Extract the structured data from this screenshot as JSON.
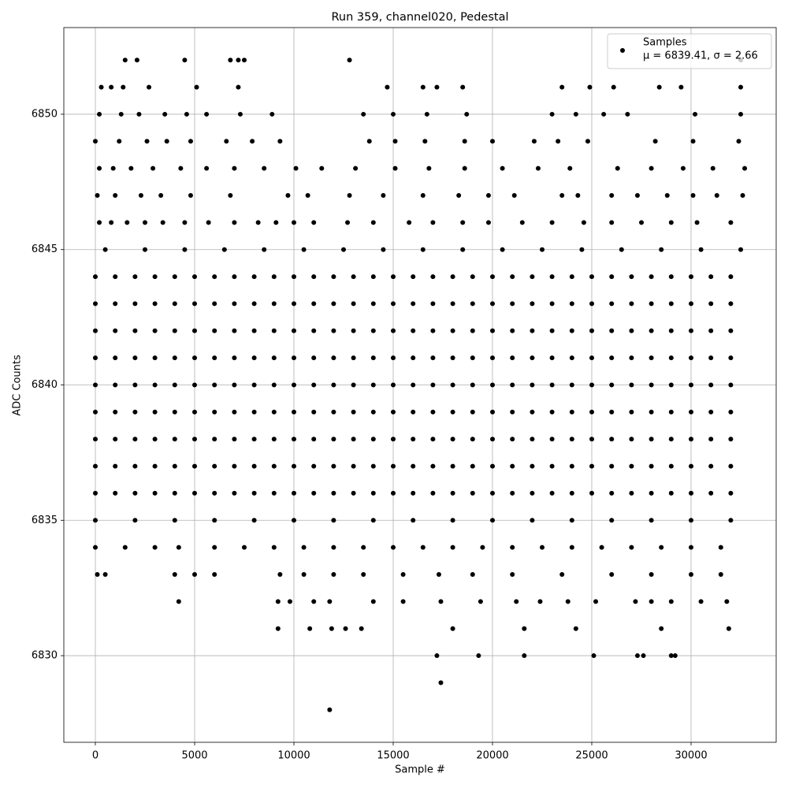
{
  "chart_data": {
    "type": "scatter",
    "title": "Run 359, channel020, Pedestal",
    "x_label": "Sample #",
    "y_label": "ADC Counts",
    "xlim": [
      -1587,
      34286
    ],
    "ylim": [
      6826.8,
      6853.2
    ],
    "xticks": [
      0,
      5000,
      10000,
      15000,
      20000,
      25000,
      30000
    ],
    "yticks": [
      6830,
      6835,
      6840,
      6845,
      6850
    ],
    "grid": true,
    "legend": "upper right",
    "series": [
      {
        "name": "Samples",
        "label": "μ = 6839.41, σ = 2.66",
        "color": "#000000",
        "x": [
          0,
          1000,
          2000,
          3000,
          4000,
          5000,
          6000,
          7000,
          8000,
          9000,
          10000,
          11000,
          12000,
          13000,
          14000,
          15000,
          16000,
          17000,
          18000,
          19000,
          20000,
          21000,
          22000,
          23000,
          24000,
          25000,
          26000,
          27000,
          28000,
          29000,
          30000,
          31000,
          32000,
          0,
          1000,
          2000,
          3000,
          4000,
          5000,
          6000,
          7000,
          8000,
          9000,
          10000,
          11000,
          12000,
          13000,
          14000,
          15000,
          16000,
          17000,
          18000,
          19000,
          20000,
          21000,
          22000,
          23000,
          24000,
          25000,
          26000,
          27000,
          28000,
          29000,
          30000,
          31000,
          32000,
          0,
          1000,
          2000,
          3000,
          4000,
          5000,
          6000,
          7000,
          8000,
          9000,
          10000,
          11000,
          12000,
          13000,
          14000,
          15000,
          16000,
          17000,
          18000,
          19000,
          20000,
          21000,
          22000,
          23000,
          24000,
          25000,
          26000,
          27000,
          28000,
          29000,
          30000,
          31000,
          32000,
          0,
          1000,
          2000,
          3000,
          4000,
          5000,
          6000,
          7000,
          8000,
          9000,
          10000,
          11000,
          12000,
          13000,
          14000,
          15000,
          16000,
          17000,
          18000,
          19000,
          20000,
          21000,
          22000,
          23000,
          24000,
          25000,
          26000,
          27000,
          28000,
          29000,
          30000,
          31000,
          32000,
          0,
          1000,
          2000,
          3000,
          4000,
          5000,
          6000,
          7000,
          8000,
          9000,
          10000,
          11000,
          12000,
          13000,
          14000,
          15000,
          16000,
          17000,
          18000,
          19000,
          20000,
          21000,
          22000,
          23000,
          24000,
          25000,
          26000,
          27000,
          28000,
          29000,
          30000,
          31000,
          32000,
          0,
          1000,
          2000,
          3000,
          4000,
          5000,
          6000,
          7000,
          8000,
          9000,
          10000,
          11000,
          12000,
          13000,
          14000,
          15000,
          16000,
          17000,
          18000,
          19000,
          20000,
          21000,
          22000,
          23000,
          24000,
          25000,
          26000,
          27000,
          28000,
          29000,
          30000,
          31000,
          32000,
          0,
          1000,
          2000,
          3000,
          4000,
          5000,
          6000,
          7000,
          8000,
          9000,
          10000,
          11000,
          12000,
          13000,
          14000,
          15000,
          16000,
          17000,
          18000,
          19000,
          20000,
          21000,
          22000,
          23000,
          24000,
          25000,
          26000,
          27000,
          28000,
          29000,
          30000,
          31000,
          32000,
          0,
          1000,
          2000,
          3000,
          4000,
          5000,
          6000,
          7000,
          8000,
          9000,
          10000,
          11000,
          12000,
          13000,
          14000,
          15000,
          16000,
          17000,
          18000,
          19000,
          20000,
          21000,
          22000,
          23000,
          24000,
          25000,
          26000,
          27000,
          28000,
          29000,
          30000,
          31000,
          32000,
          0,
          1000,
          2000,
          3000,
          4000,
          5000,
          6000,
          7000,
          8000,
          9000,
          10000,
          11000,
          12000,
          13000,
          14000,
          15000,
          16000,
          17000,
          18000,
          19000,
          20000,
          21000,
          22000,
          23000,
          24000,
          25000,
          26000,
          27000,
          28000,
          29000,
          30000,
          31000,
          32000,
          0,
          2000,
          4000,
          6000,
          8000,
          10000,
          12000,
          14000,
          16000,
          18000,
          20000,
          22000,
          24000,
          26000,
          28000,
          30000,
          32000,
          500,
          2500,
          4500,
          6500,
          8500,
          10500,
          12500,
          14500,
          16500,
          18500,
          20500,
          22500,
          24500,
          26500,
          28500,
          30500,
          32500,
          0,
          1500,
          3000,
          4200,
          6000,
          7500,
          9000,
          10500,
          12000,
          13500,
          15000,
          16500,
          18000,
          19500,
          21000,
          22500,
          24000,
          25500,
          27000,
          28500,
          30000,
          31500,
          100,
          500,
          4000,
          5000,
          6000,
          9300,
          10500,
          12000,
          13500,
          15500,
          17300,
          19000,
          21000,
          23500,
          26000,
          28000,
          30000,
          31500,
          4200,
          9200,
          9800,
          11000,
          11800,
          14000,
          15500,
          17400,
          19400,
          21200,
          22400,
          23800,
          25200,
          27200,
          28000,
          29000,
          30500,
          31800,
          9200,
          10800,
          11900,
          12600,
          13400,
          18000,
          21600,
          24200,
          28500,
          31900,
          17200,
          19300,
          21600,
          25100,
          27300,
          27600,
          29000,
          29200,
          17400,
          11800,
          200,
          800,
          1600,
          2500,
          3400,
          4500,
          5700,
          7000,
          8200,
          9100,
          10000,
          11000,
          12700,
          14000,
          15800,
          17000,
          18500,
          19800,
          21500,
          23000,
          24600,
          26000,
          27500,
          29000,
          30300,
          32000,
          100,
          1000,
          2300,
          3300,
          4800,
          6800,
          9700,
          10700,
          12800,
          14500,
          16500,
          18300,
          19800,
          21100,
          23500,
          24300,
          26000,
          27300,
          28800,
          30100,
          31300,
          32600,
          200,
          900,
          1800,
          2900,
          4300,
          5600,
          7000,
          8500,
          10100,
          11400,
          13100,
          15100,
          16800,
          18600,
          20500,
          22300,
          23900,
          26300,
          28000,
          29600,
          31100,
          32700,
          0,
          1200,
          2600,
          3600,
          4800,
          6600,
          7900,
          9300,
          13800,
          15100,
          16600,
          18600,
          20000,
          22100,
          23300,
          24800,
          28200,
          30100,
          32400,
          200,
          1300,
          2200,
          3500,
          4600,
          5600,
          7300,
          8900,
          13500,
          15000,
          16700,
          18700,
          23000,
          24200,
          25600,
          26800,
          30200,
          32500,
          300,
          800,
          1400,
          2700,
          5100,
          7200,
          14700,
          16500,
          17200,
          18500,
          23500,
          24900,
          26100,
          28400,
          29500,
          32500,
          1500,
          2100,
          4500,
          6800,
          7200,
          7500,
          12800,
          32500
        ],
        "values": [
          6836,
          6836,
          6836,
          6836,
          6836,
          6836,
          6836,
          6836,
          6836,
          6836,
          6836,
          6836,
          6836,
          6836,
          6836,
          6836,
          6836,
          6836,
          6836,
          6836,
          6836,
          6836,
          6836,
          6836,
          6836,
          6836,
          6836,
          6836,
          6836,
          6836,
          6836,
          6836,
          6836,
          6837,
          6837,
          6837,
          6837,
          6837,
          6837,
          6837,
          6837,
          6837,
          6837,
          6837,
          6837,
          6837,
          6837,
          6837,
          6837,
          6837,
          6837,
          6837,
          6837,
          6837,
          6837,
          6837,
          6837,
          6837,
          6837,
          6837,
          6837,
          6837,
          6837,
          6837,
          6837,
          6837,
          6838,
          6838,
          6838,
          6838,
          6838,
          6838,
          6838,
          6838,
          6838,
          6838,
          6838,
          6838,
          6838,
          6838,
          6838,
          6838,
          6838,
          6838,
          6838,
          6838,
          6838,
          6838,
          6838,
          6838,
          6838,
          6838,
          6838,
          6838,
          6838,
          6838,
          6838,
          6838,
          6838,
          6839,
          6839,
          6839,
          6839,
          6839,
          6839,
          6839,
          6839,
          6839,
          6839,
          6839,
          6839,
          6839,
          6839,
          6839,
          6839,
          6839,
          6839,
          6839,
          6839,
          6839,
          6839,
          6839,
          6839,
          6839,
          6839,
          6839,
          6839,
          6839,
          6839,
          6839,
          6839,
          6839,
          6840,
          6840,
          6840,
          6840,
          6840,
          6840,
          6840,
          6840,
          6840,
          6840,
          6840,
          6840,
          6840,
          6840,
          6840,
          6840,
          6840,
          6840,
          6840,
          6840,
          6840,
          6840,
          6840,
          6840,
          6840,
          6840,
          6840,
          6840,
          6840,
          6840,
          6840,
          6840,
          6840,
          6841,
          6841,
          6841,
          6841,
          6841,
          6841,
          6841,
          6841,
          6841,
          6841,
          6841,
          6841,
          6841,
          6841,
          6841,
          6841,
          6841,
          6841,
          6841,
          6841,
          6841,
          6841,
          6841,
          6841,
          6841,
          6841,
          6841,
          6841,
          6841,
          6841,
          6841,
          6841,
          6841,
          6842,
          6842,
          6842,
          6842,
          6842,
          6842,
          6842,
          6842,
          6842,
          6842,
          6842,
          6842,
          6842,
          6842,
          6842,
          6842,
          6842,
          6842,
          6842,
          6842,
          6842,
          6842,
          6842,
          6842,
          6842,
          6842,
          6842,
          6842,
          6842,
          6842,
          6842,
          6842,
          6842,
          6843,
          6843,
          6843,
          6843,
          6843,
          6843,
          6843,
          6843,
          6843,
          6843,
          6843,
          6843,
          6843,
          6843,
          6843,
          6843,
          6843,
          6843,
          6843,
          6843,
          6843,
          6843,
          6843,
          6843,
          6843,
          6843,
          6843,
          6843,
          6843,
          6843,
          6843,
          6843,
          6843,
          6844,
          6844,
          6844,
          6844,
          6844,
          6844,
          6844,
          6844,
          6844,
          6844,
          6844,
          6844,
          6844,
          6844,
          6844,
          6844,
          6844,
          6844,
          6844,
          6844,
          6844,
          6844,
          6844,
          6844,
          6844,
          6844,
          6844,
          6844,
          6844,
          6844,
          6844,
          6844,
          6844,
          6835,
          6835,
          6835,
          6835,
          6835,
          6835,
          6835,
          6835,
          6835,
          6835,
          6835,
          6835,
          6835,
          6835,
          6835,
          6835,
          6835,
          6845,
          6845,
          6845,
          6845,
          6845,
          6845,
          6845,
          6845,
          6845,
          6845,
          6845,
          6845,
          6845,
          6845,
          6845,
          6845,
          6845,
          6834,
          6834,
          6834,
          6834,
          6834,
          6834,
          6834,
          6834,
          6834,
          6834,
          6834,
          6834,
          6834,
          6834,
          6834,
          6834,
          6834,
          6834,
          6834,
          6834,
          6834,
          6834,
          6833,
          6833,
          6833,
          6833,
          6833,
          6833,
          6833,
          6833,
          6833,
          6833,
          6833,
          6833,
          6833,
          6833,
          6833,
          6833,
          6833,
          6833,
          6832,
          6832,
          6832,
          6832,
          6832,
          6832,
          6832,
          6832,
          6832,
          6832,
          6832,
          6832,
          6832,
          6832,
          6832,
          6832,
          6832,
          6832,
          6831,
          6831,
          6831,
          6831,
          6831,
          6831,
          6831,
          6831,
          6831,
          6831,
          6830,
          6830,
          6830,
          6830,
          6830,
          6830,
          6830,
          6830,
          6829,
          6828,
          6846,
          6846,
          6846,
          6846,
          6846,
          6846,
          6846,
          6846,
          6846,
          6846,
          6846,
          6846,
          6846,
          6846,
          6846,
          6846,
          6846,
          6846,
          6846,
          6846,
          6846,
          6846,
          6846,
          6846,
          6846,
          6846,
          6847,
          6847,
          6847,
          6847,
          6847,
          6847,
          6847,
          6847,
          6847,
          6847,
          6847,
          6847,
          6847,
          6847,
          6847,
          6847,
          6847,
          6847,
          6847,
          6847,
          6847,
          6847,
          6848,
          6848,
          6848,
          6848,
          6848,
          6848,
          6848,
          6848,
          6848,
          6848,
          6848,
          6848,
          6848,
          6848,
          6848,
          6848,
          6848,
          6848,
          6848,
          6848,
          6848,
          6848,
          6849,
          6849,
          6849,
          6849,
          6849,
          6849,
          6849,
          6849,
          6849,
          6849,
          6849,
          6849,
          6849,
          6849,
          6849,
          6849,
          6849,
          6849,
          6849,
          6850,
          6850,
          6850,
          6850,
          6850,
          6850,
          6850,
          6850,
          6850,
          6850,
          6850,
          6850,
          6850,
          6850,
          6850,
          6850,
          6850,
          6850,
          6851,
          6851,
          6851,
          6851,
          6851,
          6851,
          6851,
          6851,
          6851,
          6851,
          6851,
          6851,
          6851,
          6851,
          6851,
          6851,
          6852,
          6852,
          6852,
          6852,
          6852,
          6852,
          6852,
          6852
        ]
      }
    ]
  }
}
